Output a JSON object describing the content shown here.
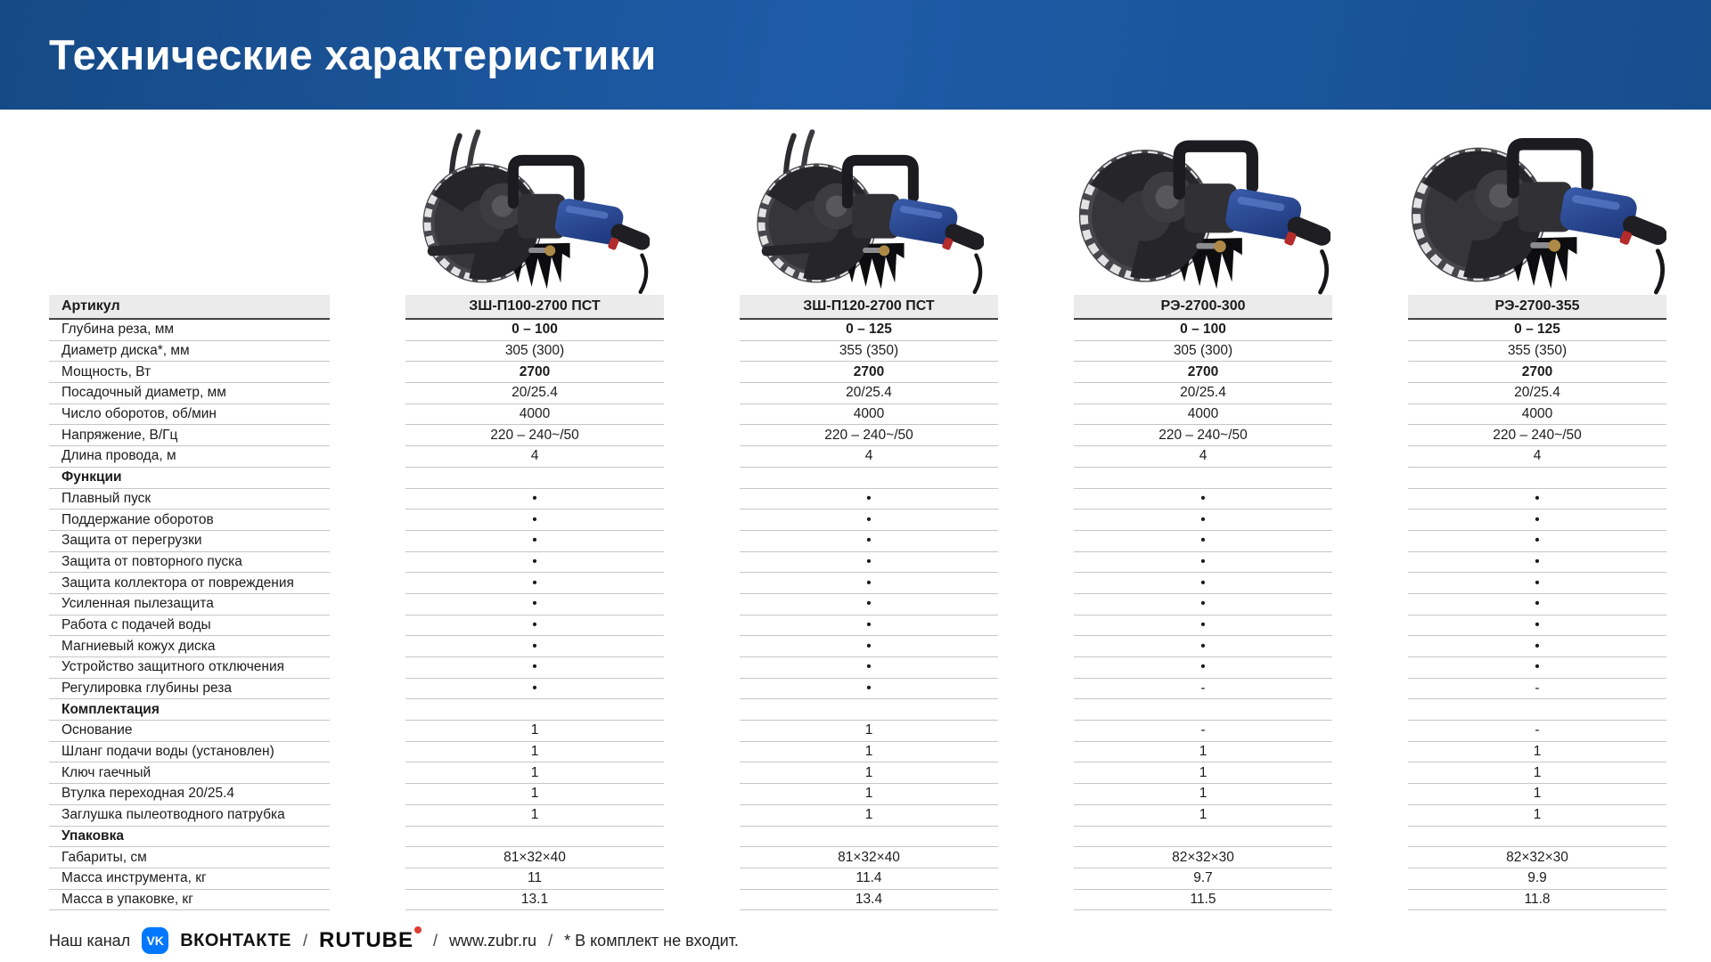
{
  "header": {
    "title": "Технические характеристики"
  },
  "table": {
    "label_header": "Артикул",
    "products": [
      {
        "name": "ЗШ-П100-2700 ПСТ",
        "type": "wall-chaser"
      },
      {
        "name": "ЗШ-П120-2700 ПСТ",
        "type": "wall-chaser"
      },
      {
        "name": "РЭ-2700-300",
        "type": "hand-cutter"
      },
      {
        "name": "РЭ-2700-355",
        "type": "hand-cutter"
      }
    ],
    "rows": [
      {
        "label": "Глубина реза, мм",
        "bold": true,
        "values": [
          "0 – 100",
          "0 – 125",
          "0 – 100",
          "0 – 125"
        ]
      },
      {
        "label": "Диаметр диска*, мм",
        "values": [
          "305 (300)",
          "355 (350)",
          "305 (300)",
          "355 (350)"
        ]
      },
      {
        "label": "Мощность, Вт",
        "bold": true,
        "values": [
          "2700",
          "2700",
          "2700",
          "2700"
        ]
      },
      {
        "label": "Посадочный диаметр, мм",
        "values": [
          "20/25.4",
          "20/25.4",
          "20/25.4",
          "20/25.4"
        ]
      },
      {
        "label": "Число оборотов, об/мин",
        "values": [
          "4000",
          "4000",
          "4000",
          "4000"
        ]
      },
      {
        "label": "Напряжение, В/Гц",
        "values": [
          "220 – 240~/50",
          "220 – 240~/50",
          "220 – 240~/50",
          "220 – 240~/50"
        ]
      },
      {
        "label": "Длина провода, м",
        "values": [
          "4",
          "4",
          "4",
          "4"
        ]
      },
      {
        "label": "Функции",
        "section": true,
        "values": [
          "",
          "",
          "",
          ""
        ]
      },
      {
        "label": "Плавный пуск",
        "values": [
          "•",
          "•",
          "•",
          "•"
        ]
      },
      {
        "label": "Поддержание оборотов",
        "values": [
          "•",
          "•",
          "•",
          "•"
        ]
      },
      {
        "label": "Защита от перегрузки",
        "values": [
          "•",
          "•",
          "•",
          "•"
        ]
      },
      {
        "label": "Защита от повторного пуска",
        "values": [
          "•",
          "•",
          "•",
          "•"
        ]
      },
      {
        "label": "Защита коллектора от повреждения",
        "values": [
          "•",
          "•",
          "•",
          "•"
        ]
      },
      {
        "label": "Усиленная пылезащита",
        "values": [
          "•",
          "•",
          "•",
          "•"
        ]
      },
      {
        "label": "Работа с подачей воды",
        "values": [
          "•",
          "•",
          "•",
          "•"
        ]
      },
      {
        "label": "Магниевый кожух диска",
        "values": [
          "•",
          "•",
          "•",
          "•"
        ]
      },
      {
        "label": "Устройство защитного отключения",
        "values": [
          "•",
          "•",
          "•",
          "•"
        ]
      },
      {
        "label": "Регулировка глубины реза",
        "values": [
          "•",
          "•",
          "-",
          "-"
        ]
      },
      {
        "label": "Комплектация",
        "section": true,
        "values": [
          "",
          "",
          "",
          ""
        ]
      },
      {
        "label": "Основание",
        "values": [
          "1",
          "1",
          "-",
          "-"
        ]
      },
      {
        "label": "Шланг подачи воды (установлен)",
        "values": [
          "1",
          "1",
          "1",
          "1"
        ]
      },
      {
        "label": "Ключ гаечный",
        "values": [
          "1",
          "1",
          "1",
          "1"
        ]
      },
      {
        "label": "Втулка переходная 20/25.4",
        "values": [
          "1",
          "1",
          "1",
          "1"
        ]
      },
      {
        "label": "Заглушка пылеотводного патрубка",
        "values": [
          "1",
          "1",
          "1",
          "1"
        ]
      },
      {
        "label": "Упаковка",
        "section": true,
        "values": [
          "",
          "",
          "",
          ""
        ]
      },
      {
        "label": "Габариты, см",
        "values": [
          "81×32×40",
          "81×32×40",
          "82×32×30",
          "82×32×30"
        ]
      },
      {
        "label": "Масса инструмента, кг",
        "values": [
          "11",
          "11.4",
          "9.7",
          "9.9"
        ]
      },
      {
        "label": "Масса в упаковке, кг",
        "values": [
          "13.1",
          "13.4",
          "11.5",
          "11.8"
        ]
      }
    ]
  },
  "footer": {
    "channel_label": "Наш канал",
    "vk_icon_text": "VK",
    "vk_label": "ВКОНТАКТЕ",
    "rutube_label": "RUTUBE",
    "separator": "/",
    "website": "www.zubr.ru",
    "note": "* В комплект не входит."
  },
  "colors": {
    "header_blue_dark": "#164a86",
    "header_blue_light": "#1e5ba7",
    "table_header_bg": "#ebebeb",
    "table_header_border": "#454545",
    "row_border": "#c6c6c6",
    "vk_blue": "#0077FF",
    "rutube_dot_red": "#e03c31",
    "zubr_motor_blue": "#2b4a9b"
  }
}
